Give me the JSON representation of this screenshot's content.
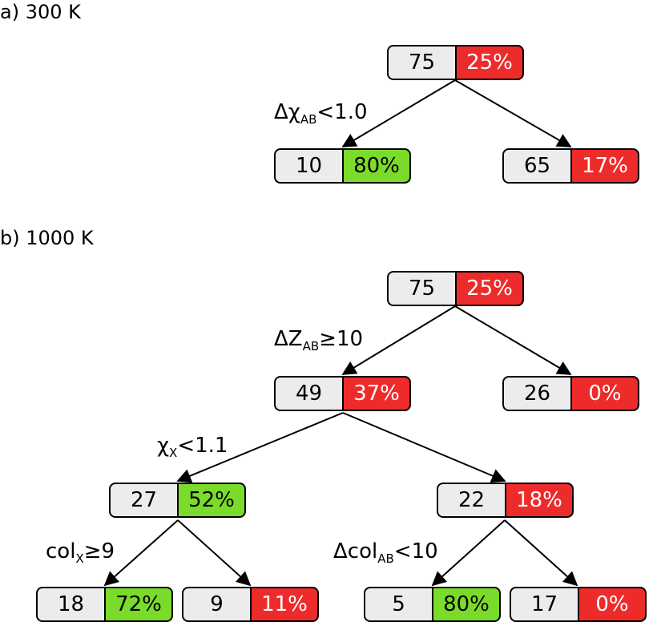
{
  "panels": [
    {
      "label": "a) 300 K"
    },
    {
      "label": "b) 1000 K"
    }
  ],
  "nodes": {
    "a_root": {
      "count": "75",
      "pct": "25%",
      "color": "red"
    },
    "a_left": {
      "count": "10",
      "pct": "80%",
      "color": "green"
    },
    "a_right": {
      "count": "65",
      "pct": "17%",
      "color": "red"
    },
    "b_root": {
      "count": "75",
      "pct": "25%",
      "color": "red"
    },
    "b_l1": {
      "count": "49",
      "pct": "37%",
      "color": "red"
    },
    "b_r1": {
      "count": "26",
      "pct": "0%",
      "color": "red"
    },
    "b_l2": {
      "count": "27",
      "pct": "52%",
      "color": "green"
    },
    "b_r2": {
      "count": "22",
      "pct": "18%",
      "color": "red"
    },
    "b_l3a": {
      "count": "18",
      "pct": "72%",
      "color": "green"
    },
    "b_l3b": {
      "count": "9",
      "pct": "11%",
      "color": "red"
    },
    "b_r3a": {
      "count": "5",
      "pct": "80%",
      "color": "green"
    },
    "b_r3b": {
      "count": "17",
      "pct": "0%",
      "color": "red"
    }
  },
  "splits": {
    "a_root": {
      "pre": "Δχ",
      "sub": "AB",
      "post": "<1.0"
    },
    "b_root": {
      "pre": "ΔZ",
      "sub": "AB",
      "post": "≥10"
    },
    "b_l1": {
      "pre": "χ",
      "sub": "X",
      "post": "<1.1"
    },
    "b_l2": {
      "pre": "col",
      "sub": "X",
      "post": "≥9"
    },
    "b_r2": {
      "pre": "Δcol",
      "sub": "AB",
      "post": "<10"
    }
  },
  "colors": {
    "red": "#ee2b2b",
    "green": "#7bdb2b",
    "count_bg": "#ececec"
  }
}
